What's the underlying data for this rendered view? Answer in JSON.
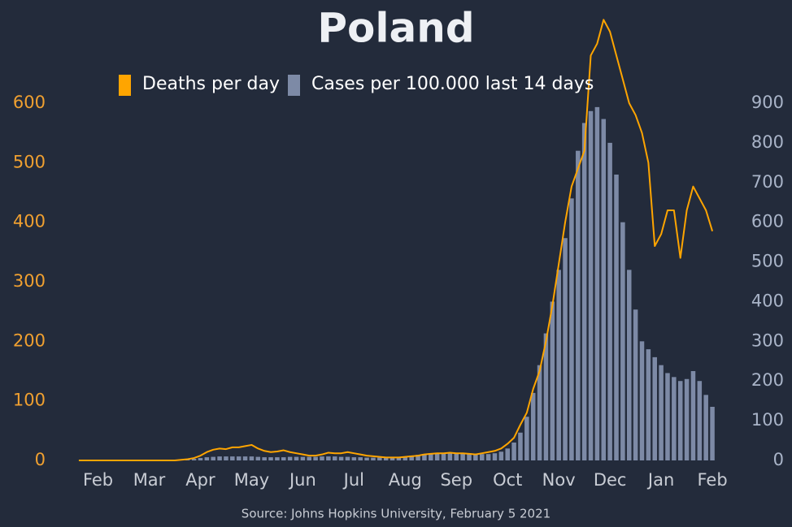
{
  "chart_data": {
    "type": "line",
    "title": "Poland",
    "source": "Source: Johns Hopkins University, February 5 2021",
    "categories": [
      null,
      null,
      null,
      "Feb",
      null,
      null,
      null,
      null,
      null,
      null,
      null,
      "Mar",
      null,
      null,
      null,
      null,
      null,
      null,
      null,
      "Apr",
      null,
      null,
      null,
      null,
      null,
      null,
      null,
      "May",
      null,
      null,
      null,
      null,
      null,
      null,
      null,
      "Jun",
      null,
      null,
      null,
      null,
      null,
      null,
      null,
      "Jul",
      null,
      null,
      null,
      null,
      null,
      null,
      null,
      "Aug",
      null,
      null,
      null,
      null,
      null,
      null,
      null,
      "Sep",
      null,
      null,
      null,
      null,
      null,
      null,
      null,
      "Oct",
      null,
      null,
      null,
      null,
      null,
      null,
      null,
      "Nov",
      null,
      null,
      null,
      null,
      null,
      null,
      null,
      "Dec",
      null,
      null,
      null,
      null,
      null,
      null,
      null,
      "Jan",
      null,
      null,
      null,
      null,
      null,
      null,
      null,
      "Feb"
    ],
    "series": [
      {
        "name": "Deaths per day",
        "type": "line",
        "color": "#ffa500",
        "values": [
          0,
          0,
          0,
          0,
          0,
          0,
          0,
          0,
          0,
          0,
          0,
          0,
          0,
          0,
          0,
          0,
          1,
          2,
          4,
          8,
          14,
          18,
          20,
          19,
          22,
          22,
          24,
          26,
          20,
          16,
          14,
          15,
          17,
          14,
          12,
          10,
          8,
          8,
          10,
          13,
          12,
          12,
          14,
          12,
          10,
          8,
          7,
          6,
          5,
          5,
          5,
          6,
          7,
          8,
          10,
          11,
          12,
          12,
          13,
          12,
          12,
          11,
          10,
          12,
          14,
          16,
          20,
          28,
          38,
          60,
          80,
          120,
          150,
          200,
          260,
          330,
          400,
          460,
          490,
          520,
          680,
          700,
          740,
          720,
          680,
          640,
          600,
          580,
          550,
          500,
          360,
          380,
          420,
          420,
          340,
          420,
          460,
          440,
          420,
          385
        ]
      },
      {
        "name": "Cases per 100.000 last 14 days",
        "type": "bar",
        "axis": "y2",
        "color": "#7d8aa6",
        "values": [
          0,
          0,
          0,
          0,
          0,
          0,
          0,
          0,
          0,
          0,
          0,
          0,
          0,
          0,
          0.1,
          0.3,
          1,
          2,
          4,
          6,
          8,
          9,
          10,
          10,
          10,
          10,
          10,
          10,
          9,
          8,
          8,
          8,
          8,
          9,
          9,
          9,
          9,
          9,
          10,
          10,
          10,
          9,
          9,
          8,
          8,
          7,
          7,
          7,
          7,
          8,
          9,
          10,
          12,
          14,
          16,
          18,
          19,
          19,
          19,
          19,
          19,
          18,
          17,
          16,
          16,
          18,
          22,
          30,
          45,
          70,
          110,
          170,
          240,
          320,
          400,
          480,
          560,
          660,
          780,
          850,
          880,
          890,
          860,
          800,
          720,
          600,
          480,
          380,
          300,
          280,
          260,
          240,
          220,
          210,
          200,
          205,
          225,
          200,
          165,
          135
        ]
      }
    ],
    "ylim": [
      0,
      600
    ],
    "yticks": [
      0,
      100,
      200,
      300,
      400,
      500,
      600
    ],
    "y2lim": [
      0,
      900
    ],
    "y2ticks": [
      0,
      100,
      200,
      300,
      400,
      500,
      600,
      700,
      800,
      900
    ]
  }
}
